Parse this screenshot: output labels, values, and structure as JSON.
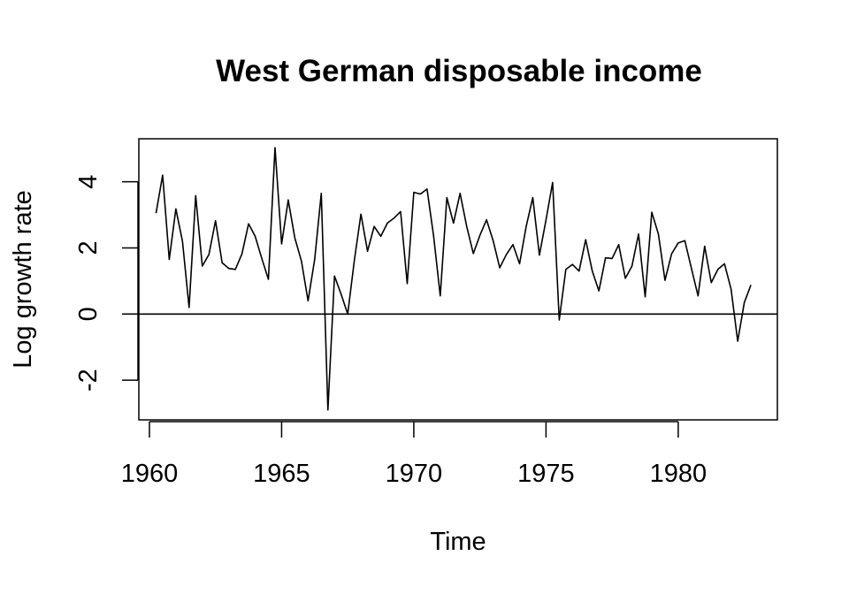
{
  "chart_data": {
    "type": "line",
    "title": "West German disposable income",
    "xlabel": "Time",
    "ylabel": "Log growth rate",
    "xlim": [
      1959.6,
      1983.75
    ],
    "ylim": [
      -3.2,
      5.3
    ],
    "grid": false,
    "legend": "none",
    "x_ticks": [
      1960,
      1965,
      1970,
      1975,
      1980
    ],
    "y_ticks": [
      -2,
      0,
      2,
      4
    ],
    "reference_line": {
      "y": 0
    },
    "series": [
      {
        "start": 1960.25,
        "frequency": 4,
        "values": [
          3.05,
          4.2,
          1.65,
          3.18,
          2.2,
          0.2,
          3.58,
          1.45,
          1.8,
          2.82,
          1.55,
          1.38,
          1.35,
          1.82,
          2.73,
          2.35,
          1.68,
          1.05,
          5.03,
          2.12,
          3.45,
          2.3,
          1.6,
          0.4,
          1.65,
          3.65,
          -2.9,
          1.15,
          0.6,
          0.0,
          1.62,
          3.02,
          1.9,
          2.65,
          2.35,
          2.75,
          2.9,
          3.1,
          0.92,
          3.68,
          3.63,
          3.78,
          2.35,
          0.55,
          3.52,
          2.75,
          3.65,
          2.65,
          1.83,
          2.38,
          2.85,
          2.22,
          1.4,
          1.8,
          2.1,
          1.52,
          2.65,
          3.52,
          1.78,
          2.85,
          3.98,
          -0.18,
          1.35,
          1.5,
          1.3,
          2.25,
          1.3,
          0.7,
          1.7,
          1.68,
          2.1,
          1.08,
          1.45,
          2.42,
          0.52,
          3.08,
          2.42,
          1.02,
          1.82,
          2.15,
          2.22,
          1.38,
          0.55,
          2.05,
          0.95,
          1.35,
          1.52,
          0.75,
          -0.82,
          0.35,
          0.88
        ]
      }
    ]
  }
}
